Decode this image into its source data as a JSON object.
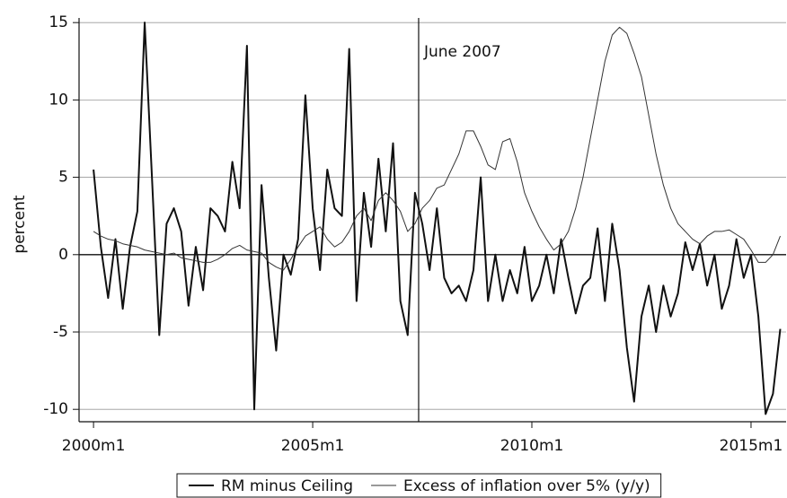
{
  "chart_data": {
    "type": "line",
    "ylabel": "percent",
    "annotation": {
      "text": "June 2007",
      "x": 2007.417
    },
    "x": [
      2000,
      2000.167,
      2000.333,
      2000.5,
      2000.667,
      2000.833,
      2001,
      2001.167,
      2001.333,
      2001.5,
      2001.667,
      2001.833,
      2002,
      2002.167,
      2002.333,
      2002.5,
      2002.667,
      2002.833,
      2003,
      2003.167,
      2003.333,
      2003.5,
      2003.667,
      2003.833,
      2004,
      2004.167,
      2004.333,
      2004.5,
      2004.667,
      2004.833,
      2005,
      2005.167,
      2005.333,
      2005.5,
      2005.667,
      2005.833,
      2006,
      2006.167,
      2006.333,
      2006.5,
      2006.667,
      2006.833,
      2007,
      2007.167,
      2007.333,
      2007.5,
      2007.667,
      2007.833,
      2008,
      2008.167,
      2008.333,
      2008.5,
      2008.667,
      2008.833,
      2009,
      2009.167,
      2009.333,
      2009.5,
      2009.667,
      2009.833,
      2010,
      2010.167,
      2010.333,
      2010.5,
      2010.667,
      2010.833,
      2011,
      2011.167,
      2011.333,
      2011.5,
      2011.667,
      2011.833,
      2012,
      2012.167,
      2012.333,
      2012.5,
      2012.667,
      2012.833,
      2013,
      2013.167,
      2013.333,
      2013.5,
      2013.667,
      2013.833,
      2014,
      2014.167,
      2014.333,
      2014.5,
      2014.667,
      2014.833,
      2015,
      2015.167,
      2015.333,
      2015.5,
      2015.667
    ],
    "series": [
      {
        "name": "RM minus Ceiling",
        "color": "#111111",
        "line_width": 2,
        "values": [
          5.5,
          0.5,
          -2.8,
          1,
          -3.5,
          0.5,
          2.8,
          15,
          5,
          -5.2,
          2,
          3,
          1.5,
          -3.3,
          0.5,
          -2.3,
          3,
          2.5,
          1.5,
          6,
          3,
          13.5,
          -10,
          4.5,
          -1.5,
          -6.2,
          0,
          -1.3,
          1,
          10.3,
          3,
          -1,
          5.5,
          3,
          2.5,
          13.3,
          -3,
          4,
          0.5,
          6.2,
          1.5,
          7.2,
          -3,
          -5.2,
          4,
          2,
          -1,
          3,
          -1.5,
          -2.5,
          -2,
          -3,
          -1,
          5,
          -3,
          0,
          -3,
          -1,
          -2.5,
          0.5,
          -3,
          -2,
          0,
          -2.5,
          1,
          -1.5,
          -3.8,
          -2,
          -1.5,
          1.7,
          -3,
          2,
          -1,
          -6,
          -9.5,
          -4,
          -2,
          -5,
          -2,
          -4,
          -2.5,
          0.8,
          -1,
          0.7,
          -2,
          0,
          -3.5,
          -2,
          1,
          -1.5,
          0,
          -4,
          -10.3,
          -9,
          -4.8
        ]
      },
      {
        "name": "Excess of inflation over 5% (y/y)",
        "color": "#333333",
        "line_width": 1,
        "values": [
          1.5,
          1.2,
          1.0,
          0.9,
          0.7,
          0.6,
          0.5,
          0.3,
          0.2,
          0.1,
          0,
          0.1,
          -0.2,
          -0.3,
          -0.4,
          -0.5,
          -0.5,
          -0.3,
          0,
          0.4,
          0.6,
          0.3,
          0.2,
          0.1,
          -0.5,
          -0.8,
          -1.0,
          -0.3,
          0.5,
          1.2,
          1.5,
          1.8,
          1.0,
          0.5,
          0.8,
          1.5,
          2.5,
          3.0,
          2.2,
          3.5,
          4.0,
          3.5,
          2.8,
          1.5,
          2.0,
          3.0,
          3.5,
          4.3,
          4.5,
          5.5,
          6.5,
          8.0,
          8.0,
          7.0,
          5.8,
          5.5,
          7.3,
          7.5,
          6.0,
          4.0,
          2.8,
          1.8,
          1.0,
          0.3,
          0.7,
          1.5,
          3.0,
          5.0,
          7.5,
          10.0,
          12.5,
          14.2,
          14.7,
          14.3,
          13.0,
          11.5,
          9.0,
          6.5,
          4.5,
          3.0,
          2.0,
          1.5,
          1.0,
          0.7,
          1.2,
          1.5,
          1.5,
          1.6,
          1.3,
          1.0,
          0.3,
          -0.5,
          -0.5,
          0,
          1.2
        ]
      }
    ],
    "xlim": [
      1999.67,
      2015.8
    ],
    "xticks": [
      {
        "value": 2000,
        "label": "2000m1"
      },
      {
        "value": 2005,
        "label": "2005m1"
      },
      {
        "value": 2010,
        "label": "2010m1"
      },
      {
        "value": 2015,
        "label": "2015m1"
      }
    ],
    "ylim": [
      -10.8,
      15.3
    ],
    "yticks": [
      -10,
      -5,
      0,
      5,
      10,
      15
    ],
    "grid": true,
    "legend": "bottom"
  }
}
